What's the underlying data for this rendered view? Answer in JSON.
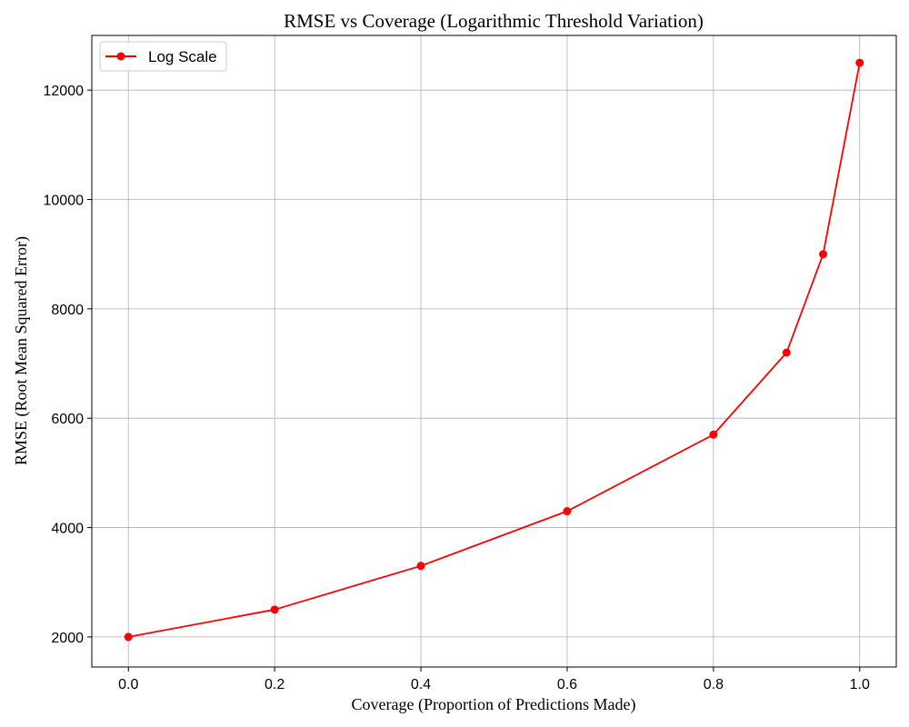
{
  "chart_data": {
    "type": "line",
    "title": "RMSE vs Coverage (Logarithmic Threshold Variation)",
    "xlabel": "Coverage (Proportion of Predictions Made)",
    "ylabel": "RMSE (Root Mean Squared Error)",
    "xlim": [
      -0.05,
      1.05
    ],
    "ylim": [
      1450,
      13000
    ],
    "xticks": [
      0.0,
      0.2,
      0.4,
      0.6,
      0.8,
      1.0
    ],
    "xtick_labels": [
      "0.0",
      "0.2",
      "0.4",
      "0.6",
      "0.8",
      "1.0"
    ],
    "yticks": [
      2000,
      4000,
      6000,
      8000,
      10000,
      12000
    ],
    "ytick_labels": [
      "2000",
      "4000",
      "6000",
      "8000",
      "10000",
      "12000"
    ],
    "grid": true,
    "legend_position": "top-left",
    "series": [
      {
        "name": "Log Scale",
        "color": "#ff0000",
        "marker": "circle",
        "x": [
          0.0,
          0.2,
          0.4,
          0.6,
          0.8,
          0.9,
          0.95,
          1.0
        ],
        "y": [
          2000,
          2500,
          3300,
          4300,
          5700,
          7200,
          9000,
          12500
        ]
      }
    ]
  }
}
